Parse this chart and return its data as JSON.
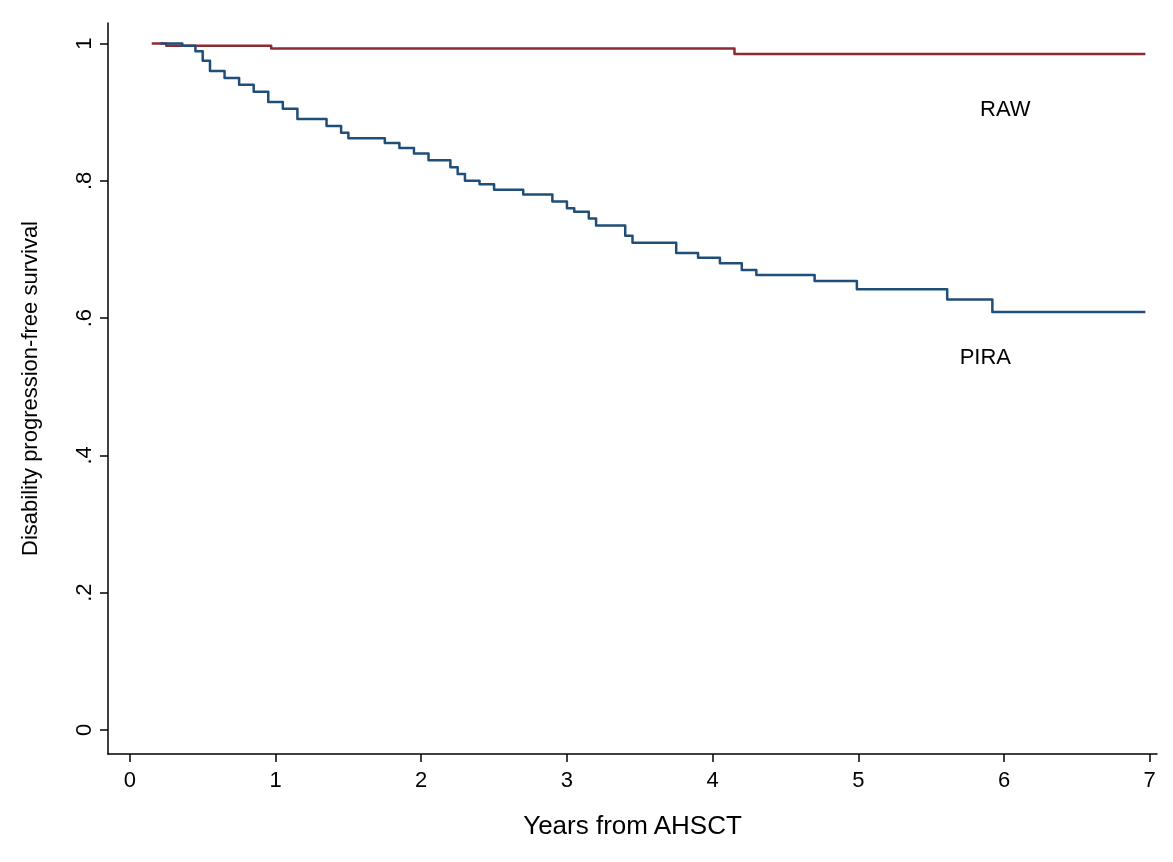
{
  "chart_data": {
    "type": "step",
    "xlabel": "Years from AHSCT",
    "ylabel": "Disability progression-free survival",
    "xlim": [
      -0.15,
      7.05
    ],
    "xticks": [
      0,
      1,
      2,
      3,
      4,
      5,
      6,
      7
    ],
    "ylim": [
      -0.035,
      1.03
    ],
    "yticks": [
      {
        "value": 0,
        "label": "0"
      },
      {
        "value": 0.2,
        "label": ".2"
      },
      {
        "value": 0.4,
        "label": ".4"
      },
      {
        "value": 0.6,
        "label": ".6"
      },
      {
        "value": 0.8,
        "label": ".8"
      },
      {
        "value": 1,
        "label": "1"
      }
    ],
    "grid": false,
    "legend": false,
    "marker": "none",
    "line_style": "solid",
    "series": [
      {
        "name": "RAW",
        "color": "#8e2b32",
        "x": [
          0.15,
          0.25,
          0.97,
          4.15,
          6.97
        ],
        "values": [
          1,
          0.997,
          0.993,
          0.985,
          0.985
        ]
      },
      {
        "name": "PIRA",
        "color": "#1f4e79",
        "x": [
          0.21,
          0.36,
          0.45,
          0.5,
          0.55,
          0.65,
          0.75,
          0.85,
          0.95,
          1.05,
          1.15,
          1.35,
          1.45,
          1.5,
          1.75,
          1.85,
          1.95,
          2.05,
          2.2,
          2.25,
          2.3,
          2.4,
          2.5,
          2.7,
          2.9,
          3.0,
          3.05,
          3.15,
          3.2,
          3.4,
          3.45,
          3.75,
          3.9,
          4.05,
          4.2,
          4.3,
          4.7,
          4.99,
          5.61,
          5.92,
          6.97
        ],
        "values": [
          1,
          0.997,
          0.989,
          0.975,
          0.96,
          0.95,
          0.94,
          0.93,
          0.915,
          0.905,
          0.89,
          0.88,
          0.87,
          0.862,
          0.855,
          0.848,
          0.84,
          0.83,
          0.82,
          0.81,
          0.8,
          0.795,
          0.787,
          0.78,
          0.77,
          0.76,
          0.755,
          0.745,
          0.735,
          0.72,
          0.71,
          0.695,
          0.688,
          0.68,
          0.67,
          0.663,
          0.654,
          0.642,
          0.627,
          0.609,
          0.609
        ]
      }
    ]
  }
}
